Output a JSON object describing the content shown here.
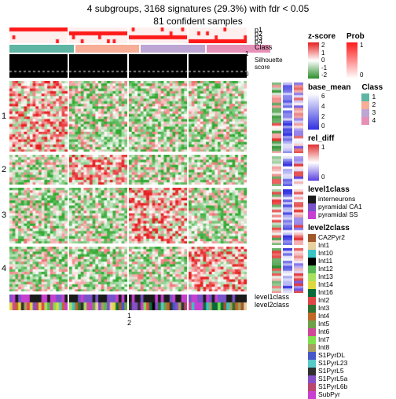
{
  "title_line1": "4 subgroups, 3168 signatures (29.3%) with fdr < 0.05",
  "title_line2": "81 confident samples",
  "groups": 4,
  "columns_per_group": 20,
  "heatmap": {
    "rows_per_block": [
      28,
      12,
      22,
      18
    ],
    "block_labels": [
      "1",
      "2",
      "3",
      "4"
    ],
    "colors": {
      "low": "#33aa33",
      "mid": "#ffffff",
      "high": "#e62020"
    },
    "noise_seed": 7
  },
  "anno_top": {
    "prob_rows": [
      "p1",
      "p2",
      "p3",
      "p4"
    ],
    "prob_color_on": "#ff1a1a",
    "prob_color_off": "#fff0f0",
    "class_colors": [
      "#5fb5a3",
      "#f8ad97",
      "#bda5d4",
      "#e690b7"
    ],
    "silhouette_bg": "#000000",
    "silhouette_dash": "#ffffff",
    "silhouette_label": "Silhouette score"
  },
  "anno_bottom": {
    "rows": [
      "level1class",
      "level2class"
    ],
    "tick_labels": [
      "1",
      "2"
    ]
  },
  "side_tracks": {
    "zscore": {
      "low": "#2b8f2b",
      "mid": "#ffffff",
      "high": "#e62020"
    },
    "base_mean": {
      "low": "#3030e0",
      "high": "#ffffff"
    },
    "rel_diff": {
      "low": "#5a40e0",
      "mid": "#ffffff",
      "high": "#e03030"
    }
  },
  "legends": {
    "zscore": {
      "title": "z-score",
      "ticks": [
        "2",
        "1",
        "0",
        "-1",
        "-2"
      ],
      "grad": [
        "#e62020",
        "#ffffff",
        "#2b8f2b"
      ]
    },
    "prob": {
      "title": "Prob",
      "ticks": [
        "1",
        "",
        "",
        "",
        "0"
      ],
      "grad": [
        "#ff1a1a",
        "#ffffff"
      ]
    },
    "base_mean": {
      "title": "base_mean",
      "ticks": [
        "6",
        "4",
        "2",
        "0"
      ],
      "grad": [
        "#ffffff",
        "#3030e0"
      ]
    },
    "class": {
      "title": "Class",
      "items": [
        {
          "c": "#5fb5a3",
          "t": "1"
        },
        {
          "c": "#f8ad97",
          "t": "2"
        },
        {
          "c": "#bda5d4",
          "t": "3"
        },
        {
          "c": "#e690b7",
          "t": "4"
        }
      ]
    },
    "rel_diff": {
      "title": "rel_diff",
      "ticks": [
        "1",
        "",
        "0"
      ],
      "grad": [
        "#e03030",
        "#ffffff",
        "#5a40e0"
      ]
    },
    "level1": {
      "title": "level1class",
      "items": [
        {
          "c": "#1a1a1a",
          "t": "interneurons"
        },
        {
          "c": "#7853c9",
          "t": "pyramidal CA1"
        },
        {
          "c": "#c840d0",
          "t": "pyramidal SS"
        }
      ]
    },
    "level2": {
      "title": "level2class",
      "items": [
        {
          "c": "#a0572c",
          "t": "CA2Pyr2"
        },
        {
          "c": "#e8cfa0",
          "t": "Int1"
        },
        {
          "c": "#3cc4c4",
          "t": "Int10"
        },
        {
          "c": "#000000",
          "t": "Int11"
        },
        {
          "c": "#58b858",
          "t": "Int12"
        },
        {
          "c": "#a8e060",
          "t": "Int13"
        },
        {
          "c": "#e0d840",
          "t": "Int14"
        },
        {
          "c": "#0a6b3a",
          "t": "Int16"
        },
        {
          "c": "#e04848",
          "t": "Int2"
        },
        {
          "c": "#307030",
          "t": "Int3"
        },
        {
          "c": "#c06828",
          "t": "Int4"
        },
        {
          "c": "#6fa04a",
          "t": "Int5"
        },
        {
          "c": "#d04898",
          "t": "Int6"
        },
        {
          "c": "#80e050",
          "t": "Int7"
        },
        {
          "c": "#a8a060",
          "t": "Int8"
        },
        {
          "c": "#4858c8",
          "t": "S1PyrDL"
        },
        {
          "c": "#58c8c8",
          "t": "S1PyrL23"
        },
        {
          "c": "#303030",
          "t": "S1PyrL5"
        },
        {
          "c": "#8850c8",
          "t": "S1PyrL5a"
        },
        {
          "c": "#b84870",
          "t": "S1PyrL6b"
        },
        {
          "c": "#c840d0",
          "t": "SubPyr"
        }
      ]
    }
  }
}
